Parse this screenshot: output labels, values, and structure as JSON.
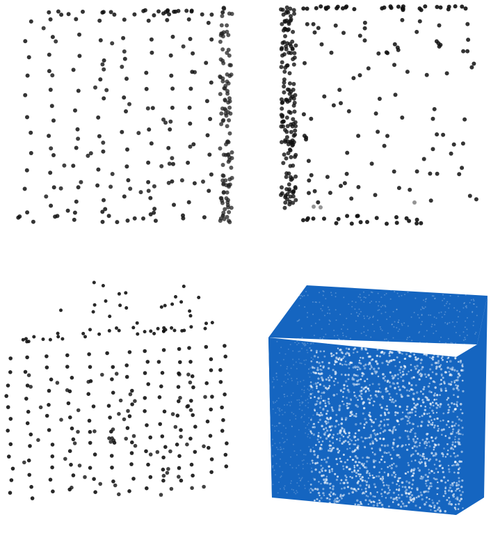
{
  "figure": {
    "panels": [
      {
        "id": "sparse-cube-front",
        "point_color": "#111111",
        "dense_edge_color": "#222222"
      },
      {
        "id": "sparse-cube-side",
        "point_color": "#111111",
        "dense_edge_color": "#111111"
      },
      {
        "id": "sparse-cube-perspective",
        "point_color": "#111111"
      },
      {
        "id": "dense-blue-cube",
        "point_color": "#1565c0",
        "highlight_color": "#ffffff"
      }
    ]
  }
}
